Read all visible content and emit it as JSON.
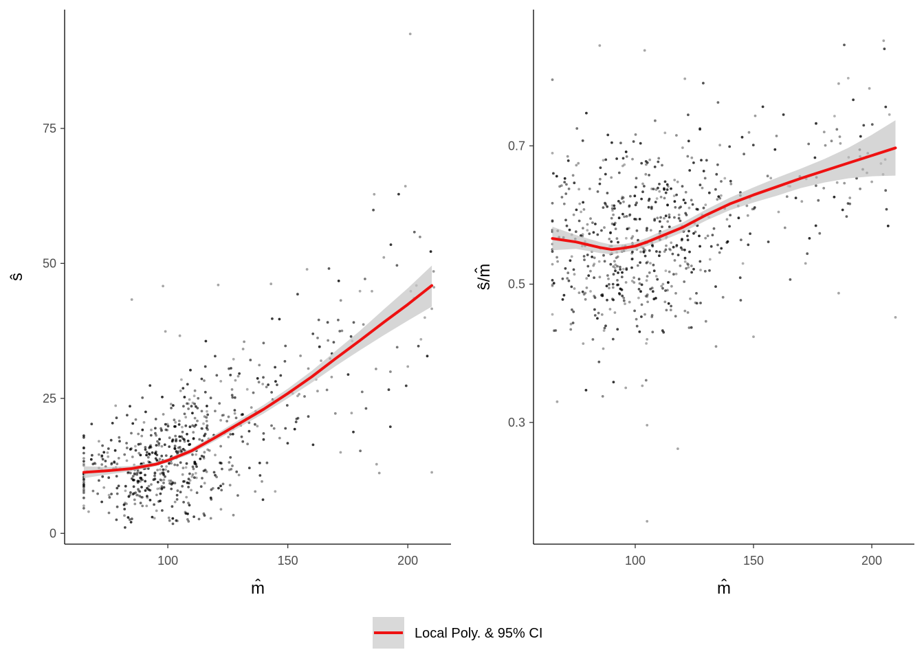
{
  "colors": {
    "fit": "#ee1111",
    "ci": "#c8c8c8",
    "points": "#000000"
  },
  "legend": {
    "label": "Local Poly. & 95% CI",
    "position": "bottom"
  },
  "chart_data": [
    {
      "type": "scatter",
      "title": "",
      "xlabel": "m̂",
      "ylabel": "ŝ",
      "xlim": [
        57,
        218
      ],
      "ylim": [
        -2,
        97
      ],
      "x_ticks": [
        100,
        150,
        200
      ],
      "y_ticks": [
        0,
        25,
        50,
        75
      ],
      "x_tick_labels": [
        "100",
        "150",
        "200"
      ],
      "y_tick_labels": [
        "0",
        "25",
        "50",
        "75"
      ],
      "n_points": 650,
      "points_seed": 7,
      "x_dist": {
        "center": 100,
        "sd": 19,
        "tail_share": 0.15,
        "tail_max": 212
      },
      "noise_sd": 6.5,
      "series": [
        {
          "name": "Local Poly. & 95% CI",
          "x": [
            65,
            75,
            85,
            95,
            100,
            110,
            120,
            130,
            140,
            150,
            160,
            170,
            180,
            190,
            200,
            210
          ],
          "y": [
            11.3,
            11.6,
            12.0,
            12.8,
            13.5,
            15.3,
            17.8,
            20.4,
            23.0,
            25.9,
            29.0,
            32.4,
            35.7,
            39.1,
            42.4,
            45.9
          ],
          "lower": [
            10.2,
            10.9,
            11.5,
            12.4,
            13.1,
            14.8,
            17.2,
            19.7,
            22.2,
            25.0,
            27.9,
            31.0,
            33.9,
            36.7,
            39.4,
            42.0
          ],
          "upper": [
            12.4,
            12.3,
            12.5,
            13.2,
            13.9,
            15.8,
            18.4,
            21.1,
            23.8,
            26.8,
            30.1,
            33.8,
            37.5,
            41.5,
            45.4,
            49.6
          ]
        }
      ],
      "highlight_points": [
        {
          "x": 201,
          "y": 92.5
        },
        {
          "x": 199,
          "y": 64.3
        },
        {
          "x": 186,
          "y": 62.8
        },
        {
          "x": 190,
          "y": 51.1
        },
        {
          "x": 158,
          "y": 48.9
        },
        {
          "x": 143,
          "y": 46.2
        },
        {
          "x": 98,
          "y": 45.8
        },
        {
          "x": 121,
          "y": 46.0
        },
        {
          "x": 85,
          "y": 43.3
        },
        {
          "x": 210,
          "y": 41.6
        },
        {
          "x": 210,
          "y": 11.3
        },
        {
          "x": 200,
          "y": 30.9
        },
        {
          "x": 187,
          "y": 12.8
        },
        {
          "x": 172,
          "y": 15.0
        },
        {
          "x": 104,
          "y": 2.3
        },
        {
          "x": 67,
          "y": 4.0
        },
        {
          "x": 99,
          "y": 37.4
        },
        {
          "x": 105,
          "y": 36.6
        }
      ]
    },
    {
      "type": "scatter",
      "title": "",
      "xlabel": "m̂",
      "ylabel": "ŝ/m̂",
      "xlim": [
        57,
        218
      ],
      "ylim": [
        0.124,
        0.897
      ],
      "x_ticks": [
        100,
        150,
        200
      ],
      "y_ticks": [
        0.3,
        0.5,
        0.7
      ],
      "x_tick_labels": [
        "100",
        "150",
        "200"
      ],
      "y_tick_labels": [
        "0.3",
        "0.5",
        "0.7"
      ],
      "n_points": 650,
      "points_seed": 7,
      "x_dist": {
        "center": 100,
        "sd": 19,
        "tail_share": 0.15,
        "tail_max": 212
      },
      "noise_sd": 0.075,
      "series": [
        {
          "name": "Local Poly. & 95% CI",
          "x": [
            65,
            75,
            85,
            90,
            95,
            100,
            105,
            110,
            120,
            130,
            140,
            150,
            160,
            170,
            180,
            190,
            200,
            210
          ],
          "y": [
            0.566,
            0.561,
            0.553,
            0.55,
            0.552,
            0.555,
            0.561,
            0.568,
            0.582,
            0.6,
            0.616,
            0.629,
            0.641,
            0.653,
            0.664,
            0.675,
            0.686,
            0.697
          ],
          "lower": [
            0.549,
            0.551,
            0.545,
            0.543,
            0.546,
            0.549,
            0.555,
            0.561,
            0.575,
            0.592,
            0.607,
            0.618,
            0.628,
            0.639,
            0.647,
            0.653,
            0.656,
            0.657
          ],
          "upper": [
            0.583,
            0.571,
            0.561,
            0.557,
            0.558,
            0.561,
            0.567,
            0.575,
            0.589,
            0.608,
            0.625,
            0.64,
            0.654,
            0.667,
            0.681,
            0.697,
            0.716,
            0.737
          ]
        }
      ],
      "highlight_points": [
        {
          "x": 104,
          "y": 0.838
        },
        {
          "x": 85,
          "y": 0.845
        },
        {
          "x": 205,
          "y": 0.852
        },
        {
          "x": 121,
          "y": 0.797
        },
        {
          "x": 199,
          "y": 0.783
        },
        {
          "x": 186,
          "y": 0.79
        },
        {
          "x": 105,
          "y": 0.157
        },
        {
          "x": 67,
          "y": 0.33
        },
        {
          "x": 105,
          "y": 0.296
        },
        {
          "x": 118,
          "y": 0.262
        },
        {
          "x": 210,
          "y": 0.452
        },
        {
          "x": 200,
          "y": 0.648
        },
        {
          "x": 186,
          "y": 0.487
        },
        {
          "x": 172,
          "y": 0.53
        },
        {
          "x": 150,
          "y": 0.424
        },
        {
          "x": 103,
          "y": 0.353
        },
        {
          "x": 96,
          "y": 0.35
        },
        {
          "x": 78,
          "y": 0.414
        }
      ]
    }
  ]
}
